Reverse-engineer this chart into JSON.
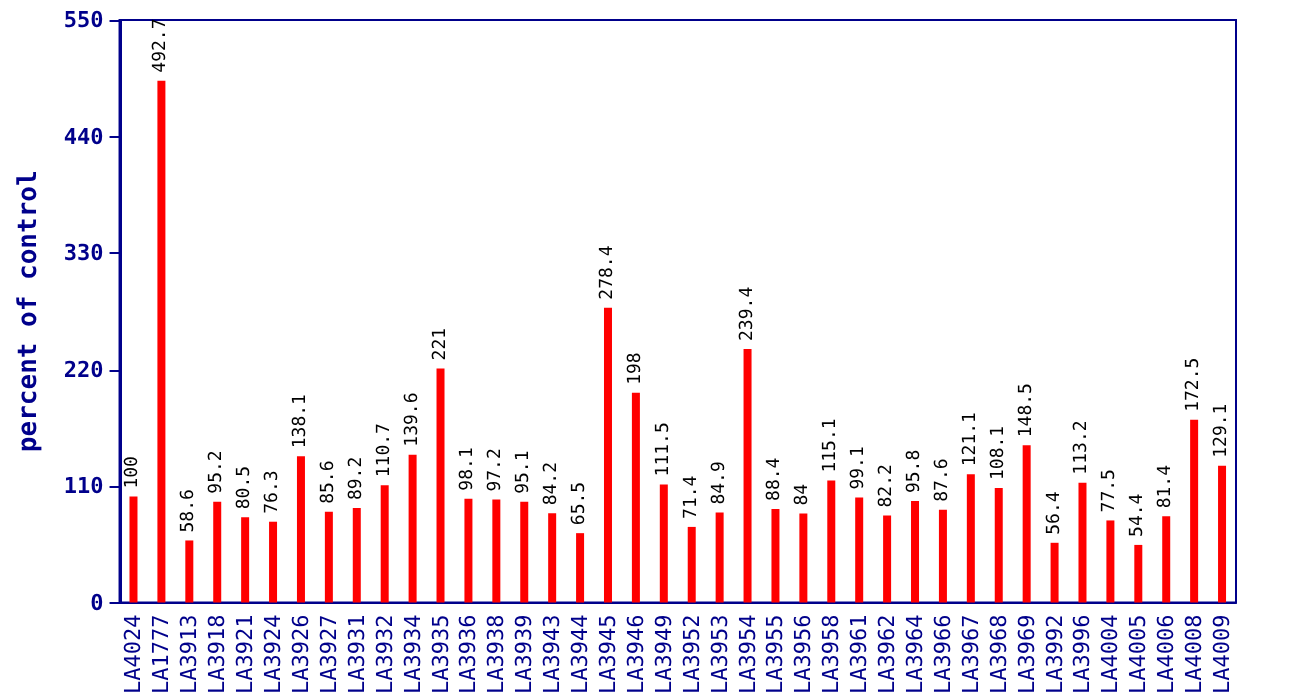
{
  "chart_data": {
    "type": "bar",
    "ylabel": "percent of control",
    "categories": [
      "LA4024",
      "LA1777",
      "LA3913",
      "LA3918",
      "LA3921",
      "LA3924",
      "LA3926",
      "LA3927",
      "LA3931",
      "LA3932",
      "LA3934",
      "LA3935",
      "LA3936",
      "LA3938",
      "LA3939",
      "LA3943",
      "LA3944",
      "LA3945",
      "LA3946",
      "LA3949",
      "LA3952",
      "LA3953",
      "LA3954",
      "LA3955",
      "LA3956",
      "LA3958",
      "LA3961",
      "LA3962",
      "LA3964",
      "LA3966",
      "LA3967",
      "LA3968",
      "LA3969",
      "LA3992",
      "LA3996",
      "LA4004",
      "LA4005",
      "LA4006",
      "LA4008",
      "LA4009"
    ],
    "values": [
      100,
      492.7,
      58.6,
      95.2,
      80.5,
      76.3,
      138.1,
      85.6,
      89.2,
      110.7,
      139.6,
      221,
      98.1,
      97.2,
      95.1,
      84.2,
      65.5,
      278.4,
      198,
      111.5,
      71.4,
      84.9,
      239.4,
      88.4,
      84,
      115.1,
      99.1,
      82.2,
      95.8,
      87.6,
      121.1,
      108.1,
      148.5,
      56.4,
      113.2,
      77.5,
      54.4,
      81.4,
      172.5,
      129.1
    ],
    "color": "#ff0000",
    "ylim": [
      0,
      550
    ],
    "yticks": [
      0,
      110,
      220,
      330,
      440,
      550
    ],
    "data_labels": true,
    "grid": false
  }
}
